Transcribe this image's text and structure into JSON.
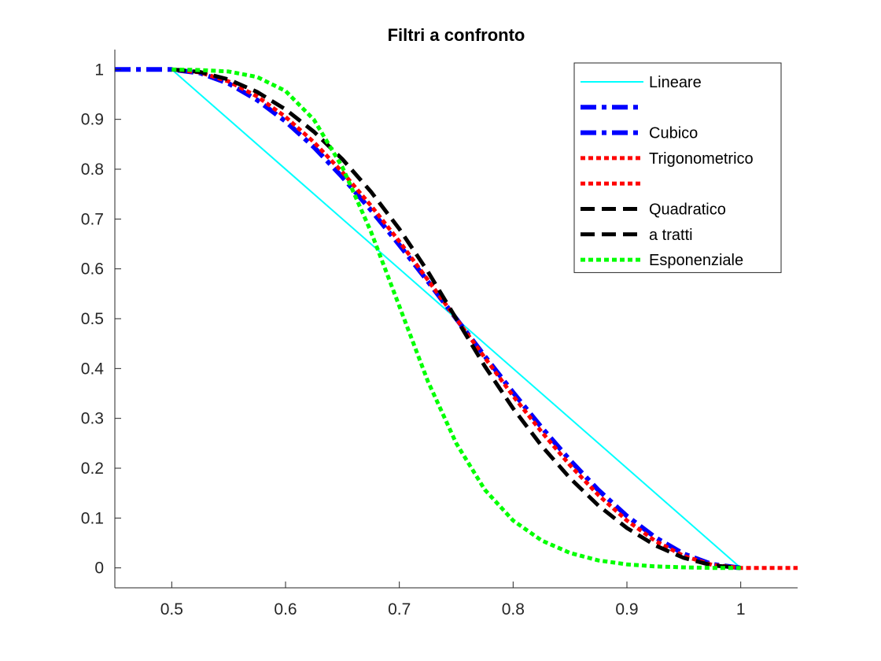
{
  "chart_data": {
    "type": "line",
    "title": "Filtri a confronto",
    "xlabel": "",
    "ylabel": "",
    "xlim": [
      0.45,
      1.05
    ],
    "ylim": [
      -0.04,
      1.04
    ],
    "x_ticks": [
      0.5,
      0.6,
      0.7,
      0.8,
      0.9,
      1
    ],
    "x_tick_labels": [
      "0.5",
      "0.6",
      "0.7",
      "0.8",
      "0.9",
      "1"
    ],
    "y_ticks": [
      0,
      0.1,
      0.2,
      0.3,
      0.4,
      0.5,
      0.6,
      0.7,
      0.8,
      0.9,
      1
    ],
    "y_tick_labels": [
      "0",
      "0.1",
      "0.2",
      "0.3",
      "0.4",
      "0.5",
      "0.6",
      "0.7",
      "0.8",
      "0.9",
      "1"
    ],
    "grid": false,
    "legend_position": "top-right",
    "legend": [
      {
        "label": "Lineare",
        "color": "#00ffff",
        "style": "solid"
      },
      {
        "label": "",
        "color": "#0000ff",
        "style": "dashdot"
      },
      {
        "label": "Cubico",
        "color": "#0000ff",
        "style": "dashdot"
      },
      {
        "label": "Trigonometrico",
        "color": "#ff0000",
        "style": "dotted"
      },
      {
        "label": "",
        "color": "#ff0000",
        "style": "dotted"
      },
      {
        "label": "Quadratico",
        "color": "#000000",
        "style": "dashed"
      },
      {
        "label": "a tratti",
        "color": "#000000",
        "style": "dashed"
      },
      {
        "label": "Esponenziale",
        "color": "#00ff00",
        "style": "dotted"
      }
    ],
    "series": [
      {
        "name": "Lineare",
        "color": "#00ffff",
        "style": "solid",
        "x": [
          0.5,
          1.0
        ],
        "y": [
          1.0,
          0.0
        ]
      },
      {
        "name": "Cubico",
        "color": "#0000ff",
        "style": "dashdot",
        "x": [
          0.45,
          0.5,
          0.525,
          0.55,
          0.575,
          0.6,
          0.625,
          0.65,
          0.675,
          0.7,
          0.725,
          0.75,
          0.775,
          0.8,
          0.825,
          0.85,
          0.875,
          0.9,
          0.925,
          0.95,
          0.975,
          1.0
        ],
        "y": [
          1.0,
          1.0,
          0.993,
          0.972,
          0.939,
          0.896,
          0.844,
          0.784,
          0.718,
          0.648,
          0.575,
          0.5,
          0.425,
          0.352,
          0.282,
          0.216,
          0.156,
          0.104,
          0.061,
          0.028,
          0.007,
          0.0
        ]
      },
      {
        "name": "Trigonometrico",
        "color": "#ff0000",
        "style": "dotted",
        "x": [
          0.5,
          0.525,
          0.55,
          0.575,
          0.6,
          0.625,
          0.65,
          0.675,
          0.7,
          0.725,
          0.75,
          0.775,
          0.8,
          0.825,
          0.85,
          0.875,
          0.9,
          0.925,
          0.95,
          0.975,
          1.0,
          1.05
        ],
        "y": [
          1.0,
          0.994,
          0.976,
          0.946,
          0.905,
          0.854,
          0.794,
          0.727,
          0.655,
          0.578,
          0.5,
          0.422,
          0.345,
          0.273,
          0.206,
          0.146,
          0.095,
          0.054,
          0.024,
          0.006,
          0.0,
          0.0
        ]
      },
      {
        "name": "Quadratico a tratti",
        "color": "#000000",
        "style": "dashed",
        "x": [
          0.5,
          0.525,
          0.55,
          0.575,
          0.6,
          0.625,
          0.65,
          0.675,
          0.7,
          0.725,
          0.75,
          0.775,
          0.8,
          0.825,
          0.85,
          0.875,
          0.9,
          0.925,
          0.95,
          0.975,
          1.0
        ],
        "y": [
          1.0,
          0.995,
          0.98,
          0.955,
          0.92,
          0.875,
          0.82,
          0.755,
          0.68,
          0.595,
          0.5,
          0.405,
          0.32,
          0.245,
          0.18,
          0.125,
          0.08,
          0.045,
          0.02,
          0.005,
          0.0
        ]
      },
      {
        "name": "Esponenziale",
        "color": "#00ff00",
        "style": "dotted",
        "x": [
          0.5,
          0.525,
          0.55,
          0.575,
          0.6,
          0.625,
          0.65,
          0.675,
          0.7,
          0.725,
          0.75,
          0.775,
          0.8,
          0.825,
          0.85,
          0.875,
          0.9,
          0.925,
          0.95,
          0.975,
          1.0
        ],
        "y": [
          1.0,
          0.999,
          0.996,
          0.985,
          0.957,
          0.899,
          0.804,
          0.675,
          0.525,
          0.375,
          0.25,
          0.157,
          0.095,
          0.055,
          0.03,
          0.015,
          0.007,
          0.003,
          0.001,
          0.0,
          0.0
        ]
      }
    ]
  }
}
